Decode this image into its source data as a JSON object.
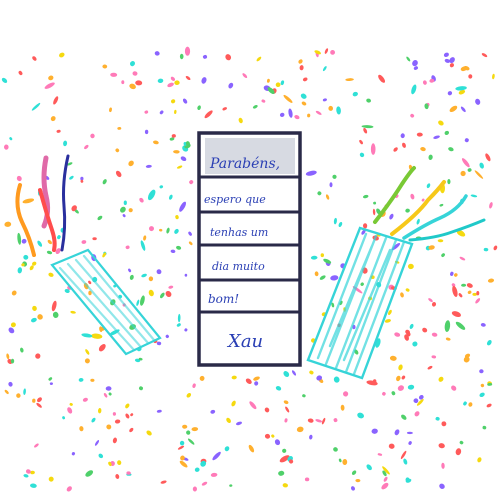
{
  "drawing": {
    "card_lines": [
      "Parabéns,",
      "espero que",
      "tenhas um",
      "dia muito",
      "bom!",
      "Xau"
    ]
  },
  "colors": {
    "paper": "#ffffff",
    "confetti": [
      "#ff5a5a",
      "#ffb02e",
      "#f5d90f",
      "#4fd06a",
      "#2fe0d6",
      "#ff7ab8",
      "#8a63ff"
    ],
    "ink_blue": "#2a3fb4",
    "card_frame": "#2a2a48",
    "card_shading": "#b6bcca",
    "popper_cyan": "#36d4d8",
    "streamer_orange": "#ff9a1f",
    "streamer_pink": "#e06aa8",
    "streamer_red": "#ff4d4d",
    "streamer_navy": "#2a2f9e",
    "streamer_yellow": "#f6c81a",
    "streamer_green": "#79c935",
    "streamer_cyan": "#20c9c9"
  },
  "icons": [
    "confetti",
    "party-popper-left",
    "party-popper-right",
    "greeting-card"
  ]
}
